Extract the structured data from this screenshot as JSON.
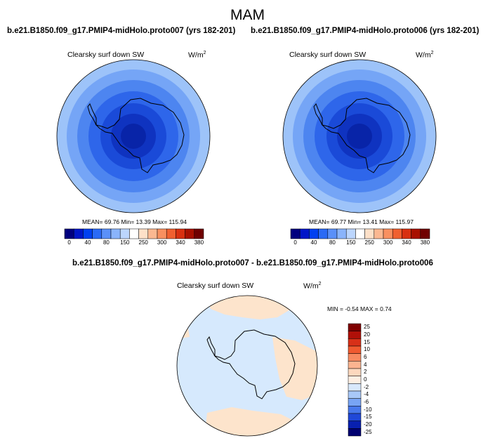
{
  "season_title": "MAM",
  "panels": [
    {
      "case_title": "b.e21.B1850.f09_g17.PMIP4-midHolo.proto007 (yrs 182-201)",
      "variable": "Clearsky surf down SW",
      "units_base": "W/m",
      "units_exp": "2",
      "stats": "MEAN=   69.76  Min=   13.39  Max= 115.94"
    },
    {
      "case_title": "b.e21.B1850.f09_g17.PMIP4-midHolo.proto006 (yrs 182-201)",
      "variable": "Clearsky surf down SW",
      "units_base": "W/m",
      "units_exp": "2",
      "stats": "MEAN=   69.77  Min=   13.41  Max= 115.97"
    }
  ],
  "abs_colorbar": {
    "labels": [
      "0",
      "40",
      "80",
      "150",
      "250",
      "300",
      "340",
      "380"
    ],
    "colors": [
      "#00007f",
      "#0016c8",
      "#0040f0",
      "#2a6af5",
      "#5a90f8",
      "#8ab4fb",
      "#bcd6fd",
      "#ffffff",
      "#fde0c8",
      "#fbb891",
      "#f89060",
      "#f06030",
      "#d83010",
      "#a81000",
      "#700000"
    ]
  },
  "diff_panel": {
    "title": "b.e21.B1850.f09_g17.PMIP4-midHolo.proto007 - b.e21.B1850.f09_g17.PMIP4-midHolo.proto006",
    "variable": "Clearsky surf down SW",
    "units_base": "W/m",
    "units_exp": "2",
    "stats": "MIN =  -0.54  MAX =    0.74"
  },
  "diff_colorbar": {
    "labels": [
      "25",
      "20",
      "15",
      "10",
      "6",
      "4",
      "2",
      "0",
      "-2",
      "-4",
      "-6",
      "-10",
      "-15",
      "-20",
      "-25"
    ],
    "colors": [
      "#800000",
      "#b01008",
      "#d83018",
      "#f05a30",
      "#f88a60",
      "#fbb490",
      "#fdd8be",
      "#fdeee2",
      "#d8e8fb",
      "#a8c8f8",
      "#78a4f4",
      "#4878ec",
      "#2048d8",
      "#0820b0",
      "#000070"
    ]
  }
}
